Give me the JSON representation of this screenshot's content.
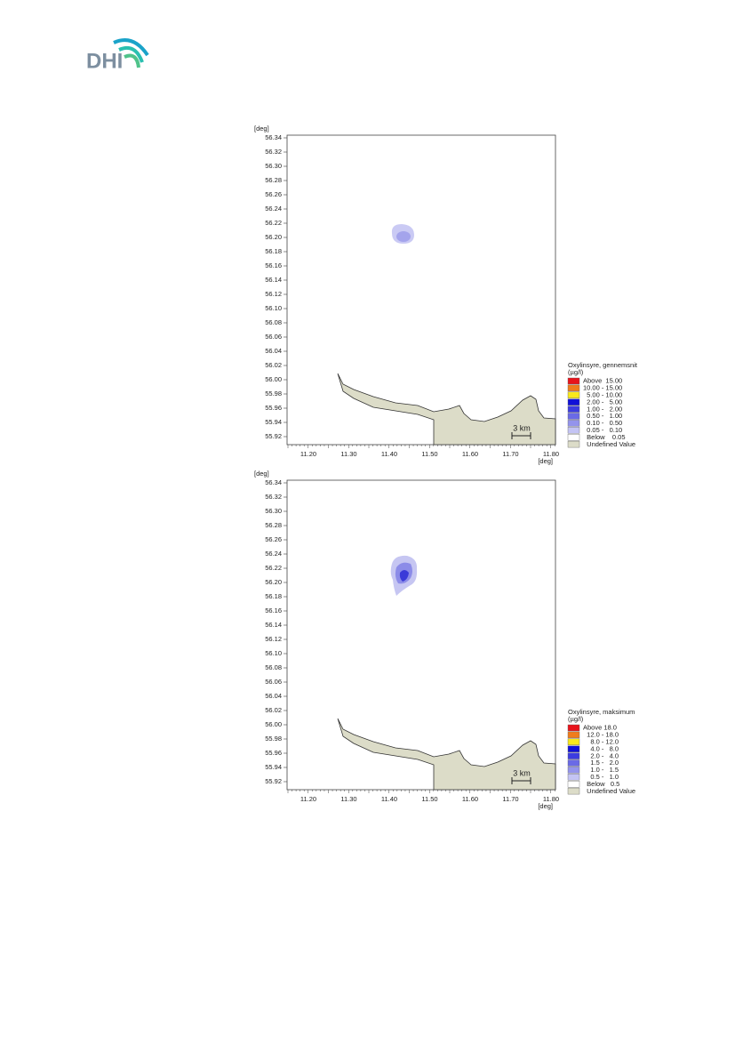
{
  "logo": "DHI",
  "maps": [
    {
      "y_unit": "[deg]",
      "x_unit": "[deg]",
      "yticks": [
        "56.34",
        "56.32",
        "56.30",
        "56.28",
        "56.26",
        "56.24",
        "56.22",
        "56.20",
        "56.18",
        "56.16",
        "56.14",
        "56.12",
        "56.10",
        "56.08",
        "56.06",
        "56.04",
        "56.02",
        "56.00",
        "55.98",
        "55.96",
        "55.94",
        "55.92"
      ],
      "xticks": [
        "11.20",
        "11.30",
        "11.40",
        "11.50",
        "11.60",
        "11.70",
        "11.80"
      ],
      "scale_label": "3 km",
      "legend": {
        "title": "Oxylinsyre, gennemsnit",
        "unit": "(µg/l)",
        "items": [
          {
            "label": "Above  15.00",
            "color": "#e8141c"
          },
          {
            "label": "10.00 - 15.00",
            "color": "#f07c1c"
          },
          {
            "label": "  5.00 - 10.00",
            "color": "#f8e81c"
          },
          {
            "label": "  2.00 -   5.00",
            "color": "#1010d8"
          },
          {
            "label": "  1.00 -   2.00",
            "color": "#3c3ce0"
          },
          {
            "label": "  0.50 -   1.00",
            "color": "#6a6ae6"
          },
          {
            "label": "  0.10 -   0.50",
            "color": "#9494ec"
          },
          {
            "label": "  0.05 -   0.10",
            "color": "#c4c4f4"
          },
          {
            "label": "  Below    0.05",
            "color": "#ffffff"
          },
          {
            "label": "  Undefined Value",
            "color": "#dcdcc8"
          }
        ]
      }
    },
    {
      "y_unit": "[deg]",
      "x_unit": "[deg]",
      "yticks": [
        "56.34",
        "56.32",
        "56.30",
        "56.28",
        "56.26",
        "56.24",
        "56.22",
        "56.20",
        "56.18",
        "56.16",
        "56.14",
        "56.12",
        "56.10",
        "56.08",
        "56.06",
        "56.04",
        "56.02",
        "56.00",
        "55.98",
        "55.96",
        "55.94",
        "55.92"
      ],
      "xticks": [
        "11.20",
        "11.30",
        "11.40",
        "11.50",
        "11.60",
        "11.70",
        "11.80"
      ],
      "scale_label": "3 km",
      "legend": {
        "title": "Oxylinsyre, maksimum",
        "unit": "(µg/l)",
        "items": [
          {
            "label": "Above 18.0",
            "color": "#e8141c"
          },
          {
            "label": "  12.0 - 18.0",
            "color": "#f07c1c"
          },
          {
            "label": "    8.0 - 12.0",
            "color": "#f8e81c"
          },
          {
            "label": "    4.0 -   8.0",
            "color": "#1010d8"
          },
          {
            "label": "    2.0 -   4.0",
            "color": "#3c3ce0"
          },
          {
            "label": "    1.5 -   2.0",
            "color": "#6a6ae6"
          },
          {
            "label": "    1.0 -   1.5",
            "color": "#9494ec"
          },
          {
            "label": "    0.5 -   1.0",
            "color": "#c4c4f4"
          },
          {
            "label": "  Below   0.5",
            "color": "#ffffff"
          },
          {
            "label": "  Undefined Value",
            "color": "#dcdcc8"
          }
        ]
      }
    }
  ]
}
